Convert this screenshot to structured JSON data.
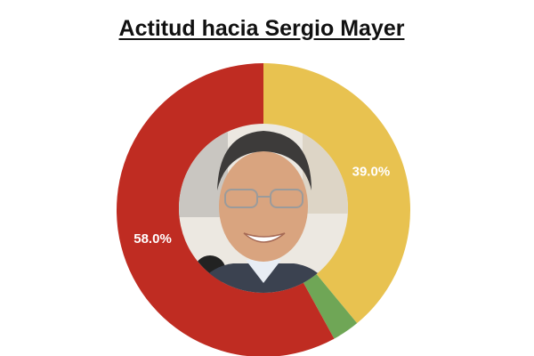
{
  "chart_data": {
    "type": "pie",
    "variant": "donut",
    "title": "Actitud hacia Sergio Mayer",
    "slices": [
      {
        "name": "yellow",
        "value": 39.0,
        "label": "39.0%",
        "color": "#e8c250"
      },
      {
        "name": "green",
        "value": 3.0,
        "label": "",
        "color": "#6fa656"
      },
      {
        "name": "red",
        "value": 58.0,
        "label": "58.0%",
        "color": "#bf2c22"
      }
    ],
    "start": "top",
    "direction": "clockwise",
    "center_image": "portrait-photo"
  }
}
